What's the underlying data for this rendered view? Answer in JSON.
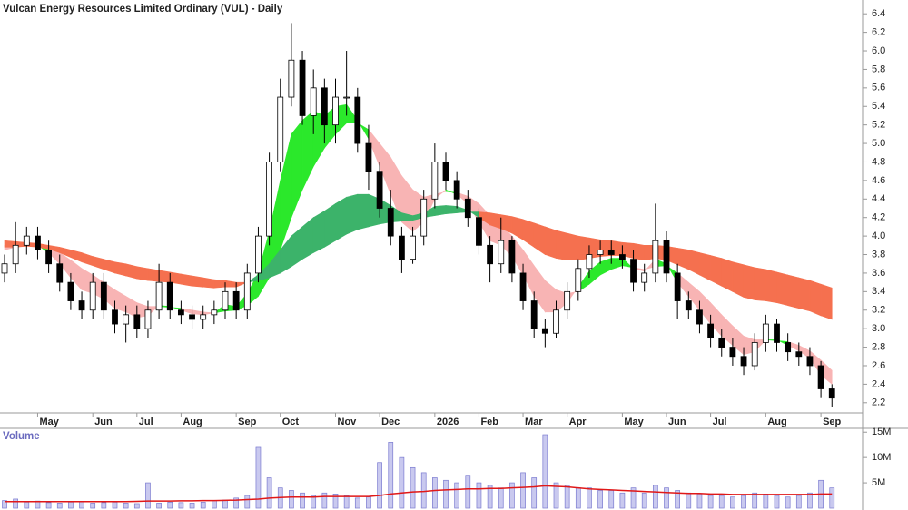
{
  "chart_data": [
    {
      "type": "candlestick",
      "title": "Vulcan Energy Resources Limited Ordinary (VUL) - Daily",
      "categories": [
        null,
        null,
        null,
        "May",
        null,
        null,
        null,
        null,
        "Jun",
        null,
        null,
        null,
        "Jul",
        null,
        null,
        null,
        "Aug",
        null,
        null,
        null,
        null,
        "Sep",
        null,
        null,
        null,
        "Oct",
        null,
        null,
        null,
        null,
        "Nov",
        null,
        null,
        null,
        "Dec",
        null,
        null,
        null,
        null,
        "2026",
        null,
        null,
        null,
        "Feb",
        null,
        null,
        null,
        "Mar",
        null,
        null,
        null,
        "Apr",
        null,
        null,
        null,
        null,
        "May",
        null,
        null,
        null,
        "Jun",
        null,
        null,
        null,
        "Jul",
        null,
        null,
        null,
        null,
        "Aug",
        null,
        null,
        null,
        null,
        "Sep",
        null
      ],
      "open": [
        3.6,
        3.7,
        3.9,
        4.0,
        3.85,
        3.7,
        3.5,
        3.3,
        3.2,
        3.5,
        3.2,
        3.05,
        3.15,
        3.0,
        3.2,
        3.5,
        3.2,
        3.15,
        3.1,
        3.15,
        3.2,
        3.4,
        3.2,
        3.6,
        4.0,
        4.8,
        5.5,
        5.9,
        5.3,
        5.6,
        5.2,
        5.5,
        5.5,
        5.0,
        4.7,
        4.3,
        4.0,
        3.75,
        4.0,
        4.4,
        4.8,
        4.6,
        4.4,
        4.2,
        3.9,
        3.7,
        3.95,
        3.6,
        3.3,
        3.0,
        2.95,
        3.2,
        3.4,
        3.65,
        3.8,
        3.85,
        3.8,
        3.75,
        3.5,
        3.6,
        3.95,
        3.6,
        3.3,
        3.2,
        3.05,
        2.9,
        2.8,
        2.7,
        2.6,
        2.85,
        3.05,
        2.85,
        2.75,
        2.7,
        2.6,
        2.35
      ],
      "high": [
        3.8,
        4.15,
        4.1,
        4.1,
        3.95,
        3.8,
        3.6,
        3.4,
        3.6,
        3.6,
        3.3,
        3.25,
        3.25,
        3.3,
        3.7,
        3.6,
        3.3,
        3.25,
        3.25,
        3.3,
        3.5,
        3.5,
        3.7,
        4.1,
        4.9,
        5.7,
        6.3,
        6.0,
        5.8,
        5.7,
        5.7,
        6.0,
        5.6,
        5.2,
        4.8,
        4.5,
        4.1,
        4.1,
        4.5,
        5.0,
        4.9,
        4.7,
        4.5,
        4.3,
        4.0,
        4.2,
        4.0,
        3.7,
        3.4,
        3.1,
        3.3,
        3.5,
        3.75,
        3.9,
        3.95,
        3.95,
        3.9,
        3.85,
        3.7,
        4.35,
        4.05,
        3.7,
        3.4,
        3.3,
        3.15,
        3.0,
        2.9,
        2.8,
        2.95,
        3.15,
        3.1,
        2.95,
        2.85,
        2.8,
        2.65,
        2.4
      ],
      "low": [
        3.5,
        3.6,
        3.8,
        3.75,
        3.6,
        3.4,
        3.2,
        3.1,
        3.1,
        3.1,
        2.95,
        2.85,
        2.9,
        2.9,
        3.1,
        3.1,
        3.05,
        3.0,
        3.0,
        3.05,
        3.1,
        3.1,
        3.1,
        3.5,
        3.9,
        4.7,
        5.4,
        5.2,
        5.1,
        5.0,
        5.0,
        5.3,
        4.9,
        4.5,
        4.2,
        3.9,
        3.6,
        3.7,
        3.9,
        4.3,
        4.5,
        4.3,
        4.1,
        3.8,
        3.5,
        3.6,
        3.5,
        3.2,
        2.9,
        2.8,
        2.9,
        3.1,
        3.3,
        3.55,
        3.7,
        3.7,
        3.65,
        3.4,
        3.4,
        3.5,
        3.5,
        3.1,
        3.1,
        2.95,
        2.8,
        2.7,
        2.6,
        2.5,
        2.55,
        2.75,
        2.75,
        2.65,
        2.6,
        2.5,
        2.25,
        2.15
      ],
      "close": [
        3.7,
        3.9,
        4.0,
        3.85,
        3.7,
        3.5,
        3.3,
        3.2,
        3.5,
        3.2,
        3.05,
        3.15,
        3.0,
        3.2,
        3.5,
        3.2,
        3.15,
        3.1,
        3.15,
        3.2,
        3.4,
        3.2,
        3.6,
        4.0,
        4.8,
        5.5,
        5.9,
        5.3,
        5.6,
        5.2,
        5.5,
        5.5,
        5.0,
        4.7,
        4.3,
        4.0,
        3.75,
        4.0,
        4.4,
        4.8,
        4.6,
        4.4,
        4.2,
        3.9,
        3.7,
        3.95,
        3.6,
        3.3,
        3.0,
        2.95,
        3.2,
        3.4,
        3.65,
        3.8,
        3.85,
        3.8,
        3.75,
        3.5,
        3.6,
        3.95,
        3.6,
        3.3,
        3.2,
        3.05,
        2.9,
        2.8,
        2.7,
        2.6,
        2.85,
        3.05,
        2.85,
        2.75,
        2.7,
        2.6,
        2.35,
        2.25
      ],
      "ribbons": [
        {
          "up_color": "#2be82b",
          "down_color": "#f8b4b4",
          "fast": [
            3.85,
            3.88,
            3.92,
            3.9,
            3.82,
            3.7,
            3.55,
            3.42,
            3.38,
            3.32,
            3.22,
            3.18,
            3.12,
            3.14,
            3.25,
            3.24,
            3.2,
            3.16,
            3.15,
            3.17,
            3.26,
            3.24,
            3.38,
            3.6,
            4.05,
            4.6,
            5.1,
            5.25,
            5.35,
            5.3,
            5.4,
            5.42,
            5.25,
            5.05,
            4.75,
            4.45,
            4.15,
            4.05,
            4.15,
            4.4,
            4.5,
            4.45,
            4.35,
            4.15,
            3.95,
            3.9,
            3.78,
            3.58,
            3.35,
            3.18,
            3.18,
            3.28,
            3.45,
            3.62,
            3.72,
            3.76,
            3.76,
            3.65,
            3.62,
            3.75,
            3.7,
            3.5,
            3.35,
            3.2,
            3.05,
            2.92,
            2.82,
            2.72,
            2.75,
            2.88,
            2.88,
            2.82,
            2.76,
            2.68,
            2.5,
            2.4
          ],
          "slow": [
            3.9,
            3.9,
            3.9,
            3.9,
            3.88,
            3.82,
            3.74,
            3.65,
            3.58,
            3.5,
            3.42,
            3.35,
            3.28,
            3.24,
            3.24,
            3.23,
            3.22,
            3.2,
            3.18,
            3.17,
            3.19,
            3.2,
            3.25,
            3.35,
            3.55,
            3.85,
            4.2,
            4.5,
            4.75,
            4.95,
            5.1,
            5.22,
            5.22,
            5.15,
            5.0,
            4.85,
            4.65,
            4.5,
            4.42,
            4.45,
            4.48,
            4.47,
            4.43,
            4.35,
            4.22,
            4.12,
            4.0,
            3.85,
            3.68,
            3.52,
            3.42,
            3.38,
            3.4,
            3.48,
            3.58,
            3.64,
            3.68,
            3.66,
            3.64,
            3.67,
            3.68,
            3.6,
            3.5,
            3.4,
            3.28,
            3.15,
            3.03,
            2.92,
            2.88,
            2.88,
            2.87,
            2.86,
            2.82,
            2.76,
            2.66,
            2.55
          ]
        },
        {
          "up_color": "#3cb36a",
          "down_color": "#f5704f",
          "fast": [
            3.88,
            3.88,
            3.89,
            3.88,
            3.86,
            3.82,
            3.77,
            3.72,
            3.68,
            3.64,
            3.6,
            3.57,
            3.54,
            3.52,
            3.51,
            3.5,
            3.48,
            3.46,
            3.45,
            3.44,
            3.45,
            3.45,
            3.5,
            3.58,
            3.7,
            3.85,
            4.0,
            4.1,
            4.2,
            4.27,
            4.35,
            4.42,
            4.45,
            4.45,
            4.4,
            4.33,
            4.25,
            4.22,
            4.25,
            4.32,
            4.33,
            4.32,
            4.28,
            4.2,
            4.12,
            4.08,
            4.03,
            3.96,
            3.88,
            3.8,
            3.76,
            3.74,
            3.74,
            3.76,
            3.78,
            3.79,
            3.79,
            3.76,
            3.74,
            3.76,
            3.74,
            3.69,
            3.64,
            3.58,
            3.52,
            3.46,
            3.4,
            3.34,
            3.31,
            3.3,
            3.28,
            3.25,
            3.22,
            3.19,
            3.14,
            3.1
          ],
          "slow": [
            3.95,
            3.94,
            3.93,
            3.92,
            3.9,
            3.88,
            3.85,
            3.82,
            3.78,
            3.75,
            3.72,
            3.7,
            3.67,
            3.65,
            3.63,
            3.61,
            3.59,
            3.57,
            3.55,
            3.53,
            3.52,
            3.5,
            3.5,
            3.52,
            3.55,
            3.6,
            3.67,
            3.75,
            3.82,
            3.88,
            3.95,
            4.02,
            4.07,
            4.1,
            4.13,
            4.15,
            4.16,
            4.17,
            4.2,
            4.22,
            4.24,
            4.25,
            4.26,
            4.26,
            4.25,
            4.23,
            4.21,
            4.18,
            4.14,
            4.1,
            4.06,
            4.03,
            4.0,
            3.98,
            3.96,
            3.95,
            3.93,
            3.92,
            3.9,
            3.9,
            3.89,
            3.87,
            3.85,
            3.82,
            3.79,
            3.76,
            3.72,
            3.69,
            3.66,
            3.64,
            3.61,
            3.58,
            3.55,
            3.52,
            3.48,
            3.44
          ]
        }
      ],
      "ylim": [
        2.1,
        6.5
      ],
      "yticks": [
        2.2,
        2.4,
        2.6,
        2.8,
        {
          "value": 3,
          "label": "3.0"
        },
        3.2,
        3.4,
        3.6,
        3.8,
        {
          "value": 4,
          "label": "4.0"
        },
        4.2,
        4.4,
        4.6,
        4.8,
        {
          "value": 5,
          "label": "5.0"
        },
        5.2,
        5.4,
        5.6,
        5.8,
        {
          "value": 6,
          "label": "6.0"
        },
        6.2,
        6.4
      ]
    },
    {
      "type": "bar",
      "title": "Volume",
      "color": "#7b7bd0",
      "values": [
        1500000,
        1800000,
        1200000,
        1400000,
        1100000,
        1000000,
        1200000,
        1300000,
        1000000,
        1100000,
        1200000,
        1000000,
        900000,
        5000000,
        1000000,
        1200000,
        1100000,
        1000000,
        1200000,
        1500000,
        1600000,
        2000000,
        2500000,
        12000000,
        6000000,
        4000000,
        3500000,
        3000000,
        2500000,
        3000000,
        2800000,
        2500000,
        2000000,
        2200000,
        9000000,
        13000000,
        10000000,
        8000000,
        7000000,
        6000000,
        5500000,
        5000000,
        6500000,
        5000000,
        4500000,
        4000000,
        5000000,
        7000000,
        6000000,
        14500000,
        5000000,
        4500000,
        4000000,
        4000000,
        3500000,
        3500000,
        3000000,
        4000000,
        3000000,
        4500000,
        4000000,
        3500000,
        3000000,
        2800000,
        2500000,
        2500000,
        2200000,
        2500000,
        3000000,
        2800000,
        2500000,
        2200000,
        2500000,
        3000000,
        5500000,
        4000000
      ],
      "average": {
        "color": "#e01818",
        "values": [
          1300000,
          1300000,
          1300000,
          1300000,
          1300000,
          1300000,
          1300000,
          1300000,
          1300000,
          1300000,
          1300000,
          1300000,
          1350000,
          1400000,
          1400000,
          1400000,
          1450000,
          1450000,
          1500000,
          1500000,
          1550000,
          1600000,
          1700000,
          1800000,
          2000000,
          2100000,
          2200000,
          2200000,
          2200000,
          2300000,
          2300000,
          2300000,
          2300000,
          2300000,
          2500000,
          2800000,
          3000000,
          3200000,
          3300000,
          3500000,
          3600000,
          3700000,
          3800000,
          3800000,
          3900000,
          3900000,
          4000000,
          4100000,
          4200000,
          4400000,
          4300000,
          4200000,
          4000000,
          3800000,
          3700000,
          3600000,
          3500000,
          3400000,
          3300000,
          3200000,
          3100000,
          3000000,
          2900000,
          2900000,
          2800000,
          2800000,
          2700000,
          2700000,
          2700000,
          2700000,
          2700000,
          2700000,
          2700000,
          2700000,
          2800000,
          2800000
        ]
      },
      "ylim": [
        0,
        15400000
      ],
      "yticks": [
        {
          "value": 5000000,
          "label": "5M"
        },
        {
          "value": 10000000,
          "label": "10M"
        },
        {
          "value": 15000000,
          "label": "15M"
        }
      ]
    }
  ]
}
